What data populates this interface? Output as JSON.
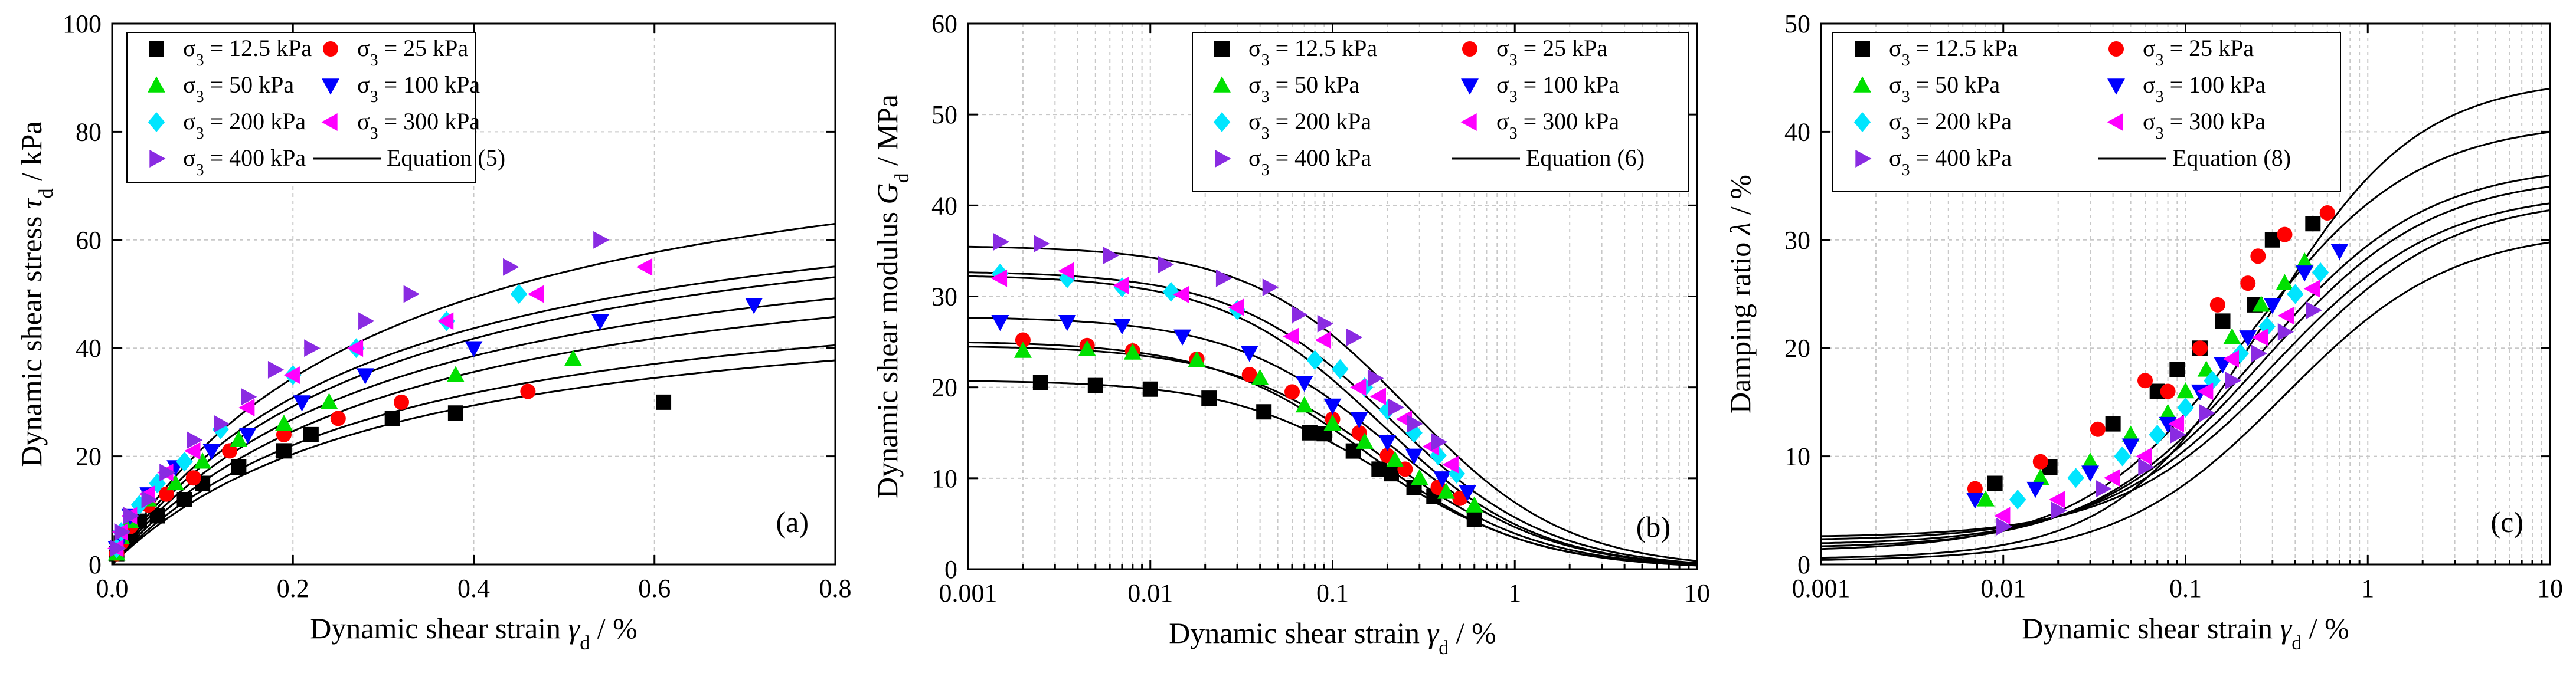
{
  "series_styles": [
    {
      "name": "σ3 = 12.5 kPa",
      "sub_base": "σ",
      "sub": "3",
      "rest": " = 12.5 kPa",
      "marker": "square",
      "color": "#000000"
    },
    {
      "name": "σ3 = 25 kPa",
      "sub_base": "σ",
      "sub": "3",
      "rest": " = 25 kPa",
      "marker": "circle",
      "color": "#ff0000"
    },
    {
      "name": "σ3 = 50 kPa",
      "sub_base": "σ",
      "sub": "3",
      "rest": " = 50 kPa",
      "marker": "triangle-up",
      "color": "#00e000"
    },
    {
      "name": "σ3 = 100 kPa",
      "sub_base": "σ",
      "sub": "3",
      "rest": " = 100 kPa",
      "marker": "triangle-down",
      "color": "#0000ff"
    },
    {
      "name": "σ3 = 200 kPa",
      "sub_base": "σ",
      "sub": "3",
      "rest": " = 200 kPa",
      "marker": "diamond",
      "color": "#00e5ff"
    },
    {
      "name": "σ3 = 300 kPa",
      "sub_base": "σ",
      "sub": "3",
      "rest": " = 300 kPa",
      "marker": "triangle-left",
      "color": "#ff00ff"
    },
    {
      "name": "σ3 = 400 kPa",
      "sub_base": "σ",
      "sub": "3",
      "rest": " = 400 kPa",
      "marker": "triangle-right",
      "color": "#8a2be2"
    }
  ],
  "chart_data": [
    {
      "type": "scatter",
      "panel_label": "(a)",
      "xscale": "linear",
      "xlim": [
        0,
        0.8
      ],
      "ylim": [
        0,
        100
      ],
      "xticks": [
        0,
        0.2,
        0.4,
        0.6,
        0.8
      ],
      "xtick_labels": [
        "0.0",
        "0.2",
        "0.4",
        "0.6",
        "0.8"
      ],
      "yticks": [
        0,
        20,
        40,
        60,
        80,
        100
      ],
      "ytick_labels": [
        "0",
        "20",
        "40",
        "60",
        "80",
        "100"
      ],
      "xlabel": {
        "base": "Dynamic shear strain ",
        "italic": "γ",
        "sub": "d",
        "tail": " / %"
      },
      "ylabel": {
        "base": "Dynamic shear stress ",
        "italic": "τ",
        "sub": "d",
        "tail": " / kPa"
      },
      "fit_label": "Equation (5)",
      "legend_position": "top-left",
      "fit_model": "hyperbolic",
      "series": [
        {
          "name": "σ3 = 12.5 kPa",
          "x": [
            0.005,
            0.01,
            0.02,
            0.03,
            0.05,
            0.08,
            0.1,
            0.14,
            0.19,
            0.22,
            0.31,
            0.38,
            0.61
          ],
          "y": [
            2,
            4,
            6,
            8,
            9,
            12,
            15,
            18,
            21,
            24,
            27,
            28,
            30
          ],
          "fit": {
            "a": 0.006,
            "b": 0.019
          }
        },
        {
          "name": "σ3 = 25 kPa",
          "x": [
            0.005,
            0.01,
            0.02,
            0.04,
            0.06,
            0.09,
            0.13,
            0.19,
            0.25,
            0.32,
            0.46
          ],
          "y": [
            2,
            4,
            7,
            11,
            13,
            16,
            21,
            24,
            27,
            30,
            32
          ],
          "fit": {
            "a": 0.0055,
            "b": 0.0178
          }
        },
        {
          "name": "σ3 = 50 kPa",
          "x": [
            0.005,
            0.01,
            0.02,
            0.04,
            0.07,
            0.1,
            0.14,
            0.19,
            0.24,
            0.38,
            0.51
          ],
          "y": [
            2,
            5,
            8,
            12,
            15,
            19,
            23,
            26,
            30,
            35,
            38
          ],
          "fit": {
            "a": 0.005,
            "b": 0.0156
          }
        },
        {
          "name": "σ3 = 100 kPa",
          "x": [
            0.005,
            0.01,
            0.02,
            0.04,
            0.07,
            0.11,
            0.15,
            0.21,
            0.28,
            0.4,
            0.54,
            0.71
          ],
          "y": [
            3,
            5,
            9,
            13,
            18,
            21,
            24,
            30,
            35,
            40,
            45,
            48
          ],
          "fit": {
            "a": 0.0045,
            "b": 0.0147
          }
        },
        {
          "name": "σ3 = 200 kPa",
          "x": [
            0.005,
            0.01,
            0.03,
            0.05,
            0.08,
            0.12,
            0.2,
            0.27,
            0.37,
            0.45
          ],
          "y": [
            3,
            6,
            11,
            15,
            19,
            25,
            35,
            40,
            45,
            50
          ],
          "fit": {
            "a": 0.0041,
            "b": 0.0137
          }
        },
        {
          "name": "σ3 = 300 kPa",
          "x": [
            0.005,
            0.01,
            0.02,
            0.04,
            0.06,
            0.09,
            0.15,
            0.2,
            0.27,
            0.37,
            0.47,
            0.59
          ],
          "y": [
            3,
            6,
            9,
            13,
            17,
            21,
            29,
            35,
            40,
            45,
            50,
            55
          ],
          "fit": {
            "a": 0.0038,
            "b": 0.0134
          }
        },
        {
          "name": "σ3 = 400 kPa",
          "x": [
            0.005,
            0.01,
            0.02,
            0.04,
            0.06,
            0.09,
            0.12,
            0.15,
            0.18,
            0.22,
            0.28,
            0.33,
            0.44,
            0.54
          ],
          "y": [
            3,
            6,
            9,
            12,
            17,
            23,
            26,
            31,
            36,
            40,
            45,
            50,
            55,
            60
          ],
          "fit": {
            "a": 0.0035,
            "b": 0.0115
          }
        }
      ]
    },
    {
      "type": "scatter",
      "panel_label": "(b)",
      "xscale": "log",
      "xlim": [
        0.001,
        10
      ],
      "ylim": [
        0,
        60
      ],
      "xticks": [
        0.001,
        0.01,
        0.1,
        1,
        10
      ],
      "xtick_labels": [
        "0.001",
        "0.01",
        "0.1",
        "1",
        "10"
      ],
      "yticks": [
        0,
        10,
        20,
        30,
        40,
        50,
        60
      ],
      "ytick_labels": [
        "0",
        "10",
        "20",
        "30",
        "40",
        "50",
        "60"
      ],
      "xlabel": {
        "base": "Dynamic shear strain ",
        "italic": "γ",
        "sub": "d",
        "tail": " / %"
      },
      "ylabel": {
        "base": "Dynamic shear modulus ",
        "italic": "G",
        "sub": "d",
        "tail": " / MPa"
      },
      "fit_label": "Equation (6)",
      "legend_position": "top-right",
      "fit_model": "modulus",
      "series": [
        {
          "name": "σ3 = 12.5 kPa",
          "x": [
            0.0025,
            0.005,
            0.01,
            0.021,
            0.042,
            0.075,
            0.09,
            0.13,
            0.18,
            0.21,
            0.28,
            0.36,
            0.6
          ],
          "y": [
            20.5,
            20.2,
            19.8,
            18.8,
            17.3,
            15,
            14.9,
            13,
            11,
            10.5,
            9,
            8,
            5.5
          ],
          "fit": {
            "g0": 20.8,
            "gr": 0.2
          }
        },
        {
          "name": "σ3 = 25 kPa",
          "x": [
            0.002,
            0.0045,
            0.008,
            0.018,
            0.035,
            0.06,
            0.1,
            0.14,
            0.2,
            0.25,
            0.38,
            0.5
          ],
          "y": [
            25.2,
            24.6,
            24,
            23.1,
            21.4,
            19.5,
            16.5,
            15,
            12.5,
            11,
            9,
            7.8
          ],
          "fit": {
            "g0": 25.1,
            "gr": 0.16
          }
        },
        {
          "name": "σ3 = 50 kPa",
          "x": [
            0.002,
            0.0045,
            0.008,
            0.018,
            0.04,
            0.07,
            0.1,
            0.15,
            0.22,
            0.3,
            0.42,
            0.6
          ],
          "y": [
            24,
            24.2,
            23.8,
            23,
            21,
            18,
            16,
            14,
            12,
            10,
            8.5,
            7
          ],
          "fit": {
            "g0": 24.6,
            "gr": 0.19
          }
        },
        {
          "name": "σ3 = 100 kPa",
          "x": [
            0.0015,
            0.0035,
            0.007,
            0.015,
            0.035,
            0.07,
            0.1,
            0.14,
            0.2,
            0.28,
            0.4,
            0.55
          ],
          "y": [
            27.2,
            27.2,
            26.8,
            25.6,
            23.8,
            20.5,
            18,
            16.5,
            14,
            12.5,
            10,
            8.5
          ],
          "fit": {
            "g0": 27.8,
            "gr": 0.2
          }
        },
        {
          "name": "σ3 = 200 kPa",
          "x": [
            0.0015,
            0.0035,
            0.007,
            0.013,
            0.03,
            0.08,
            0.11,
            0.15,
            0.2,
            0.28,
            0.38,
            0.48
          ],
          "y": [
            32.5,
            32,
            31,
            30.5,
            28.5,
            23,
            22,
            20,
            17.5,
            15,
            12.5,
            10.5
          ],
          "fit": {
            "g0": 32.4,
            "gr": 0.18
          }
        },
        {
          "name": "σ3 = 300 kPa",
          "x": [
            0.0015,
            0.0035,
            0.007,
            0.015,
            0.03,
            0.06,
            0.09,
            0.14,
            0.18,
            0.25,
            0.35,
            0.45
          ],
          "y": [
            32,
            32.8,
            31.2,
            30.2,
            28.8,
            25.6,
            25.2,
            20,
            19,
            16.5,
            13.5,
            11.5
          ],
          "fit": {
            "g0": 32.8,
            "gr": 0.21
          }
        },
        {
          "name": "σ3 = 400 kPa",
          "x": [
            0.0015,
            0.0025,
            0.006,
            0.012,
            0.025,
            0.045,
            0.065,
            0.09,
            0.13,
            0.17,
            0.22,
            0.28,
            0.38
          ],
          "y": [
            36,
            35.8,
            34.5,
            33.5,
            32,
            31,
            28,
            27,
            25.5,
            21,
            17.8,
            16,
            14
          ],
          "fit": {
            "g0": 35.6,
            "gr": 0.26
          }
        }
      ]
    },
    {
      "type": "scatter",
      "panel_label": "(c)",
      "xscale": "log",
      "xlim": [
        0.001,
        10
      ],
      "ylim": [
        0,
        50
      ],
      "xticks": [
        0.001,
        0.01,
        0.1,
        1,
        10
      ],
      "xtick_labels": [
        "0.001",
        "0.01",
        "0.1",
        "1",
        "10"
      ],
      "yticks": [
        0,
        10,
        20,
        30,
        40,
        50
      ],
      "ytick_labels": [
        "0",
        "10",
        "20",
        "30",
        "40",
        "50"
      ],
      "xlabel": {
        "base": "Dynamic shear strain ",
        "italic": "γ",
        "sub": "d",
        "tail": " / %"
      },
      "ylabel": {
        "base": "Damping ratio ",
        "italic": "λ",
        "sub": "",
        "tail": " / %"
      },
      "fit_label": "Equation (8)",
      "legend_position": "top-left",
      "fit_model": "damping",
      "series": [
        {
          "name": "σ3 = 12.5 kPa",
          "x": [
            0.009,
            0.018,
            0.04,
            0.07,
            0.09,
            0.12,
            0.16,
            0.24,
            0.3,
            0.5
          ],
          "y": [
            7.5,
            9,
            13,
            16,
            18,
            20,
            22.5,
            24,
            30,
            31.5
          ],
          "fit": {
            "lmax": 45,
            "c": 0.28,
            "n": 1.05,
            "l0": 0.5
          }
        },
        {
          "name": "σ3 = 25 kPa",
          "x": [
            0.007,
            0.016,
            0.033,
            0.06,
            0.08,
            0.12,
            0.15,
            0.22,
            0.25,
            0.35,
            0.6
          ],
          "y": [
            7,
            9.5,
            12.5,
            17,
            16,
            20,
            24,
            26,
            28.5,
            30.5,
            32.5
          ],
          "fit": {
            "lmax": 41,
            "c": 0.22,
            "n": 0.95,
            "l0": 1.2
          }
        },
        {
          "name": "σ3 = 50 kPa",
          "x": [
            0.008,
            0.016,
            0.03,
            0.05,
            0.08,
            0.1,
            0.13,
            0.18,
            0.26,
            0.35,
            0.45
          ],
          "y": [
            6,
            8,
            9.5,
            12,
            14,
            16,
            18,
            21,
            24,
            26,
            28
          ],
          "fit": {
            "lmax": 37,
            "c": 0.25,
            "n": 0.95,
            "l0": 1.5
          }
        },
        {
          "name": "σ3 = 100 kPa",
          "x": [
            0.007,
            0.015,
            0.03,
            0.05,
            0.08,
            0.12,
            0.16,
            0.22,
            0.3,
            0.45,
            0.7
          ],
          "y": [
            6,
            7,
            8.5,
            11,
            13,
            16,
            18.5,
            21,
            24,
            27,
            29
          ],
          "fit": {
            "lmax": 36,
            "c": 0.27,
            "n": 0.95,
            "l0": 1.8
          }
        },
        {
          "name": "σ3 = 200 kPa",
          "x": [
            0.012,
            0.025,
            0.045,
            0.07,
            0.1,
            0.14,
            0.2,
            0.28,
            0.4,
            0.55
          ],
          "y": [
            6,
            8,
            10,
            12,
            14.5,
            17,
            19.5,
            22,
            25,
            27
          ],
          "fit": {
            "lmax": 34.5,
            "c": 0.3,
            "n": 0.95,
            "l0": 2.2
          }
        },
        {
          "name": "σ3 = 300 kPa",
          "x": [
            0.01,
            0.02,
            0.04,
            0.06,
            0.09,
            0.13,
            0.18,
            0.26,
            0.36,
            0.5
          ],
          "y": [
            4.5,
            6,
            8,
            10,
            13,
            16,
            19,
            21,
            23,
            25.5
          ],
          "fit": {
            "lmax": 34,
            "c": 0.35,
            "n": 0.95,
            "l0": 2.5
          }
        },
        {
          "name": "σ3 = 400 kPa",
          "x": [
            0.01,
            0.02,
            0.035,
            0.06,
            0.09,
            0.13,
            0.18,
            0.25,
            0.35,
            0.5
          ],
          "y": [
            3.5,
            5,
            7,
            9,
            12,
            14,
            17,
            19.5,
            21.5,
            23.5
          ],
          "fit": {
            "lmax": 31,
            "c": 0.35,
            "n": 0.95,
            "l0": 0.3
          }
        }
      ]
    }
  ]
}
